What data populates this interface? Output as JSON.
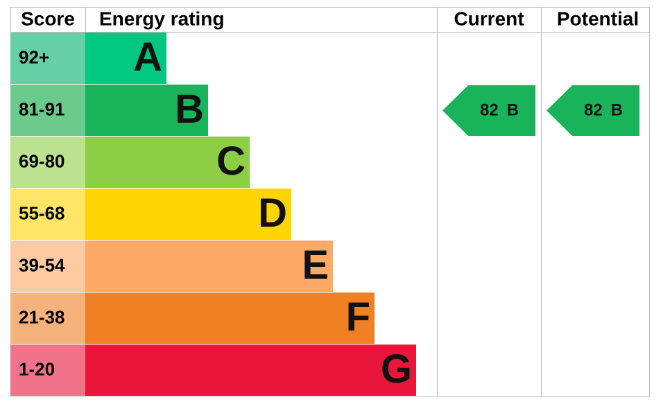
{
  "header": {
    "score": "Score",
    "rating": "Energy rating",
    "current": "Current",
    "potential": "Potential"
  },
  "bands": [
    {
      "score": "92+",
      "letter": "A",
      "color": "#00c781",
      "score_color": "#66cfa6"
    },
    {
      "score": "81-91",
      "letter": "B",
      "color": "#19b459",
      "score_color": "#6bcb8d"
    },
    {
      "score": "69-80",
      "letter": "C",
      "color": "#8dce46",
      "score_color": "#bbe28f"
    },
    {
      "score": "55-68",
      "letter": "D",
      "color": "#ffd500",
      "score_color": "#ffe566"
    },
    {
      "score": "39-54",
      "letter": "E",
      "color": "#fcaa65",
      "score_color": "#fdcaa1"
    },
    {
      "score": "21-38",
      "letter": "F",
      "color": "#ef8023",
      "score_color": "#f5b37b"
    },
    {
      "score": "1-20",
      "letter": "G",
      "color": "#e9153b",
      "score_color": "#f07389"
    }
  ],
  "current": {
    "value": 82,
    "letter": "B",
    "color": "#19b459"
  },
  "potential": {
    "value": 82,
    "letter": "B",
    "color": "#19b459"
  }
}
